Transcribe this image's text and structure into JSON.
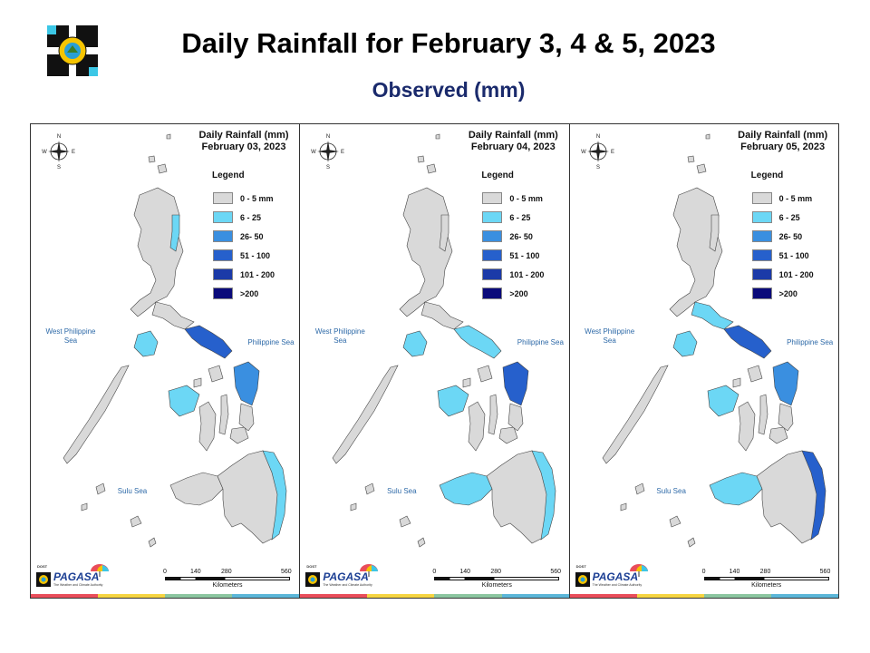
{
  "title": "Daily Rainfall for February 3, 4 & 5, 2023",
  "subtitle": "Observed (mm)",
  "legend": {
    "title": "Legend",
    "items": [
      {
        "label": "0 - 5 mm",
        "color": "#d9d9d9"
      },
      {
        "label": "6 - 25",
        "color": "#6cd7f5"
      },
      {
        "label": "26- 50",
        "color": "#3a8fe0"
      },
      {
        "label": "51 - 100",
        "color": "#2660cc"
      },
      {
        "label": "101 - 200",
        "color": "#1b3aa8"
      },
      {
        "label": ">200",
        "color": "#0a0a7a"
      }
    ]
  },
  "seas": {
    "west": "West Philippine Sea",
    "east": "Philippine Sea",
    "sulu": "Sulu Sea"
  },
  "scale": {
    "ticks": [
      "0",
      "140",
      "280",
      "560"
    ],
    "unit": "Kilometers"
  },
  "brand": {
    "dost": "DOST",
    "name": "PAGASA",
    "tagline": "The Weather and Climate Authority"
  },
  "compass": {
    "n": "N",
    "s": "S",
    "e": "E",
    "w": "W"
  },
  "panels": [
    {
      "heading": "Daily Rainfall (mm)",
      "date": "February 03, 2023",
      "rain": {
        "luzon_ne": "light",
        "mindoro": "light",
        "bicol": "heavy",
        "panay": "light",
        "samar_e": "moderate",
        "mindanao_e": "light",
        "mindanao_w": "none",
        "luzon_south": "none"
      }
    },
    {
      "heading": "Daily Rainfall (mm)",
      "date": "February 04, 2023",
      "rain": {
        "luzon_ne": "none",
        "mindoro": "light",
        "bicol": "light",
        "panay": "light",
        "samar_e": "heavy",
        "mindanao_e": "light",
        "mindanao_w": "light",
        "luzon_south": "none"
      }
    },
    {
      "heading": "Daily Rainfall (mm)",
      "date": "February 05, 2023",
      "rain": {
        "luzon_ne": "none",
        "mindoro": "light",
        "bicol": "heavy",
        "panay": "light",
        "samar_e": "moderate",
        "mindanao_e": "heavy",
        "mindanao_w": "light",
        "luzon_south": "light"
      }
    }
  ]
}
